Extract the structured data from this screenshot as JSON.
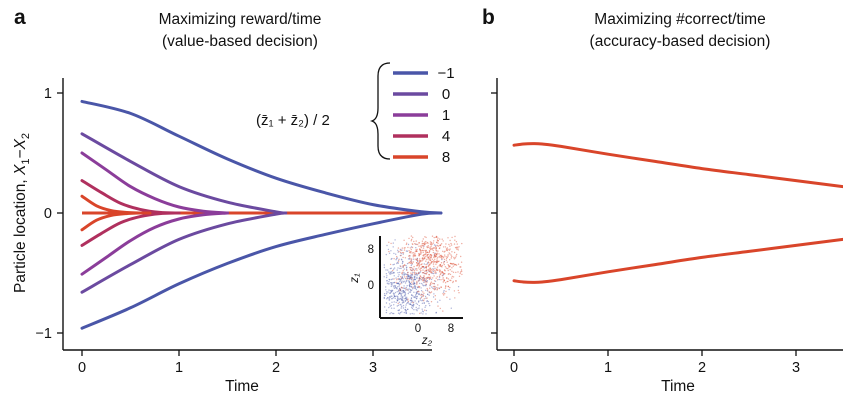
{
  "panels": [
    {
      "id": "a",
      "panel_label": "a",
      "title_lines": [
        "Maximizing reward/time",
        "(value-based decision)"
      ],
      "ylabel": "Particle location, X₁−X₂",
      "ylabel_parts": [
        "Particle location, ",
        "X",
        "1",
        "−",
        "X",
        "2"
      ],
      "xlabel": "Time",
      "legend_formula": "(z̄₁ + z̄₂) / 2",
      "inset": {
        "ylabel": "z₁",
        "xlabel": "z₂",
        "yticks": [
          "8",
          "0"
        ],
        "xticks": [
          "0",
          "8"
        ]
      }
    },
    {
      "id": "b",
      "panel_label": "b",
      "title_lines": [
        "Maximizing #correct/time",
        "(accuracy-based decision)"
      ],
      "xlabel": "Time"
    }
  ],
  "chart_data": [
    {
      "type": "line",
      "panel": "a",
      "title": "Maximizing reward/time (value-based decision)",
      "xlabel": "Time",
      "ylabel": "Particle location, X₁−X₂",
      "xlim": [
        -0.1,
        3.7
      ],
      "ylim": [
        -1.05,
        1.05
      ],
      "xticks": [
        0,
        1,
        2,
        3
      ],
      "yticks": [
        -1,
        0,
        1
      ],
      "grid": false,
      "legend_title": "(z̄₁ + z̄₂) / 2",
      "legend_placement": "top-right",
      "series": [
        {
          "name": "−1",
          "color": "#4a56a8",
          "x": [
            0,
            0.5,
            1.0,
            1.5,
            2.0,
            2.5,
            3.0,
            3.5,
            3.7
          ],
          "upper": [
            0.93,
            0.83,
            0.64,
            0.45,
            0.29,
            0.17,
            0.07,
            0.01,
            0.0
          ],
          "lower": [
            -0.96,
            -0.79,
            -0.59,
            -0.42,
            -0.28,
            -0.18,
            -0.09,
            -0.01,
            0.0
          ]
        },
        {
          "name": "0",
          "color": "#6b4aa0",
          "x": [
            0,
            0.5,
            1.0,
            1.5,
            2.0,
            2.1
          ],
          "upper": [
            0.66,
            0.43,
            0.22,
            0.09,
            0.01,
            0.0
          ],
          "lower": [
            -0.66,
            -0.43,
            -0.22,
            -0.09,
            -0.01,
            0.0
          ]
        },
        {
          "name": "1",
          "color": "#8b3d9a",
          "x": [
            0,
            0.25,
            0.5,
            0.75,
            1.0,
            1.25,
            1.5
          ],
          "upper": [
            0.5,
            0.36,
            0.22,
            0.12,
            0.05,
            0.015,
            0.0
          ],
          "lower": [
            -0.51,
            -0.37,
            -0.23,
            -0.12,
            -0.05,
            -0.015,
            0.0
          ]
        },
        {
          "name": "4",
          "color": "#b0305e",
          "x": [
            0,
            0.2,
            0.4,
            0.6,
            0.8,
            1.0
          ],
          "upper": [
            0.27,
            0.17,
            0.08,
            0.03,
            0.005,
            0.0
          ],
          "lower": [
            -0.27,
            -0.17,
            -0.08,
            -0.03,
            -0.005,
            0.0
          ]
        },
        {
          "name": "8",
          "color": "#d9452a",
          "x": [
            0,
            0.15,
            0.3,
            0.45,
            0.6,
            0.7
          ],
          "upper": [
            0.14,
            0.06,
            0.02,
            0.005,
            0.0,
            0.0
          ],
          "lower": [
            -0.14,
            -0.06,
            -0.02,
            -0.005,
            0.0,
            0.0
          ]
        }
      ],
      "zero_line": {
        "color": "#d9452a",
        "x": [
          0,
          3.7
        ],
        "y": 0
      }
    },
    {
      "type": "line",
      "panel": "b",
      "title": "Maximizing #correct/time (accuracy-based decision)",
      "xlabel": "Time",
      "xlim": [
        -0.1,
        3.7
      ],
      "ylim": [
        -1.05,
        1.05
      ],
      "xticks": [
        0,
        1,
        2,
        3
      ],
      "yticks": [
        -1,
        0,
        1
      ],
      "ytick_labels_shown": false,
      "grid": false,
      "series": [
        {
          "color": "#d9452a",
          "x": [
            0,
            0.1,
            0.2,
            0.3,
            0.5,
            1.0,
            1.5,
            2.0,
            2.5,
            3.0,
            3.5,
            3.7
          ],
          "upper": [
            0.565,
            0.575,
            0.578,
            0.575,
            0.555,
            0.49,
            0.43,
            0.37,
            0.32,
            0.27,
            0.22,
            0.2
          ],
          "lower": [
            -0.565,
            -0.575,
            -0.578,
            -0.575,
            -0.555,
            -0.49,
            -0.43,
            -0.37,
            -0.32,
            -0.27,
            -0.22,
            -0.2
          ]
        }
      ]
    }
  ]
}
